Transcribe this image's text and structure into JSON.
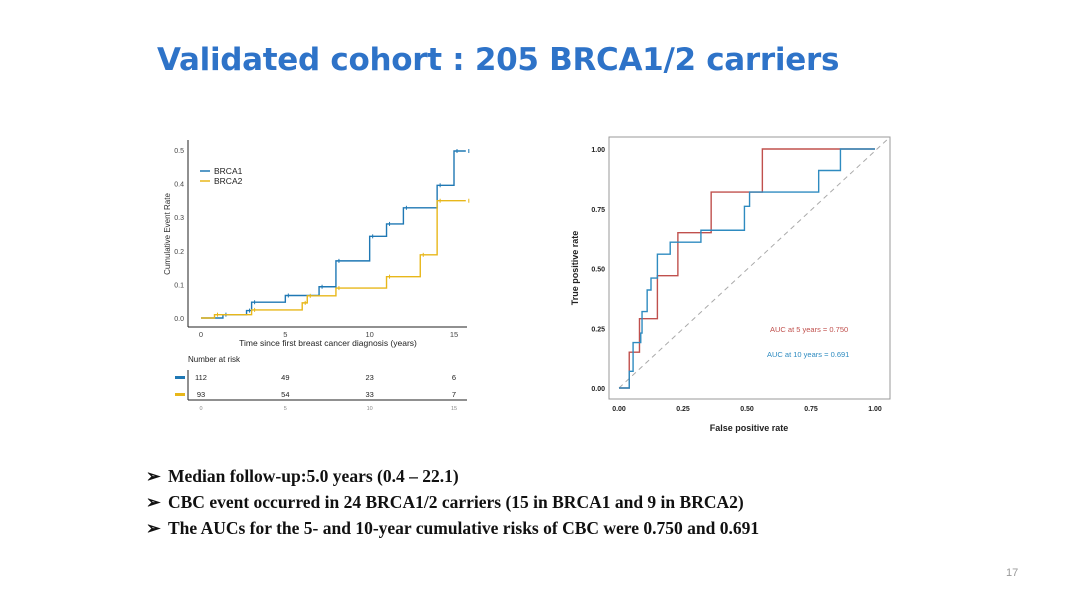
{
  "slide": {
    "title": "Validated cohort : 205 BRCA1/2 carriers",
    "page_number": "17",
    "bullets": [
      "Median follow-up:5.0 years (0.4 – 22.1)",
      "CBC event occurred in 24 BRCA1/2 carriers (15 in BRCA1 and 9 in BRCA2)",
      "The AUCs for the 5- and 10-year cumulative risks of CBC were 0.750 and 0.691"
    ],
    "bullet_marker": "➢",
    "title_color": "#2e73c8"
  },
  "chart_data": [
    {
      "type": "line",
      "step": true,
      "xlabel": "Time since first breast cancer diagnosis (years)",
      "ylabel": "Cumulative Event Rate",
      "xlim": [
        0,
        15.7
      ],
      "ylim": [
        0,
        0.5
      ],
      "xticks": [
        "0",
        "5",
        "10",
        "15"
      ],
      "yticks": [
        "0.0",
        "0.1",
        "0.2",
        "0.3",
        "0.4",
        "0.5"
      ],
      "grid": false,
      "legend": "top-left",
      "series": [
        {
          "name": "BRCA1",
          "color": "#1f78b4",
          "points": [
            [
              0,
              0
            ],
            [
              1.3,
              0.01
            ],
            [
              2.7,
              0.022
            ],
            [
              3,
              0.047
            ],
            [
              5,
              0.067
            ],
            [
              7,
              0.093
            ],
            [
              8,
              0.17
            ],
            [
              10,
              0.243
            ],
            [
              11,
              0.28
            ],
            [
              12,
              0.328
            ],
            [
              14,
              0.395
            ],
            [
              15,
              0.497
            ],
            [
              15.7,
              0.497
            ]
          ]
        },
        {
          "name": "BRCA2",
          "color": "#e8b71a",
          "points": [
            [
              0,
              0
            ],
            [
              0.8,
              0.01
            ],
            [
              3,
              0.024
            ],
            [
              6,
              0.045
            ],
            [
              6.3,
              0.066
            ],
            [
              8,
              0.089
            ],
            [
              11,
              0.123
            ],
            [
              13,
              0.188
            ],
            [
              14,
              0.349
            ],
            [
              15.7,
              0.349
            ]
          ]
        }
      ],
      "risk_table": {
        "title": "Number at risk",
        "times": [
          "0",
          "5",
          "10",
          "15"
        ],
        "rows": [
          {
            "series": "BRCA1",
            "values": [
              "112",
              "49",
              "23",
              "6"
            ]
          },
          {
            "series": "BRCA2",
            "values": [
              "93",
              "54",
              "33",
              "7"
            ]
          }
        ]
      }
    },
    {
      "type": "line",
      "step": true,
      "xlabel": "False positive rate",
      "ylabel": "True positive rate",
      "xlim": [
        0,
        1
      ],
      "ylim": [
        0,
        1
      ],
      "xticks": [
        "0.00",
        "0.25",
        "0.50",
        "0.75",
        "1.00"
      ],
      "yticks": [
        "0.00",
        "0.25",
        "0.50",
        "0.75",
        "1.00"
      ],
      "grid": false,
      "reference_line": "diagonal dashed",
      "annotations": [
        {
          "text": "AUC at 5 years = 0.750",
          "color": "#c0504d"
        },
        {
          "text": "AUC at 10 years = 0.691",
          "color": "#2e8bc0"
        }
      ],
      "series": [
        {
          "label": "5 years",
          "color": "#c0504d",
          "points": [
            [
              0,
              0
            ],
            [
              0.04,
              0
            ],
            [
              0.04,
              0.15
            ],
            [
              0.08,
              0.15
            ],
            [
              0.08,
              0.29
            ],
            [
              0.15,
              0.29
            ],
            [
              0.15,
              0.47
            ],
            [
              0.23,
              0.47
            ],
            [
              0.23,
              0.65
            ],
            [
              0.36,
              0.65
            ],
            [
              0.36,
              0.82
            ],
            [
              0.56,
              0.82
            ],
            [
              0.56,
              1
            ],
            [
              1,
              1
            ]
          ]
        },
        {
          "label": "10 years",
          "color": "#2e8bc0",
          "points": [
            [
              0,
              0
            ],
            [
              0.04,
              0
            ],
            [
              0.04,
              0.07
            ],
            [
              0.055,
              0.07
            ],
            [
              0.055,
              0.19
            ],
            [
              0.085,
              0.19
            ],
            [
              0.085,
              0.23
            ],
            [
              0.09,
              0.32
            ],
            [
              0.11,
              0.32
            ],
            [
              0.11,
              0.41
            ],
            [
              0.125,
              0.41
            ],
            [
              0.125,
              0.46
            ],
            [
              0.15,
              0.46
            ],
            [
              0.15,
              0.56
            ],
            [
              0.2,
              0.56
            ],
            [
              0.2,
              0.61
            ],
            [
              0.32,
              0.61
            ],
            [
              0.32,
              0.66
            ],
            [
              0.49,
              0.66
            ],
            [
              0.49,
              0.76
            ],
            [
              0.51,
              0.76
            ],
            [
              0.51,
              0.82
            ],
            [
              0.78,
              0.82
            ],
            [
              0.78,
              0.91
            ],
            [
              0.865,
              0.91
            ],
            [
              0.865,
              1
            ],
            [
              1,
              1
            ]
          ]
        }
      ]
    }
  ]
}
